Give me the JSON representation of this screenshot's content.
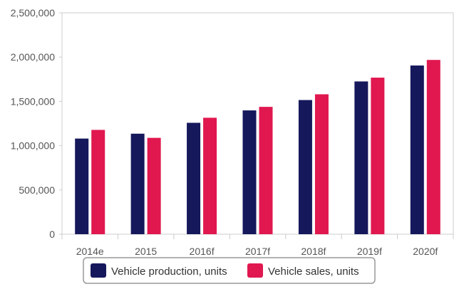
{
  "chart_data": {
    "type": "bar",
    "title": "",
    "xlabel": "",
    "ylabel": "",
    "categories": [
      "2014e",
      "2015",
      "2016f",
      "2017f",
      "2018f",
      "2019f",
      "2020f"
    ],
    "series": [
      {
        "name": "Vehicle production, units",
        "color": "#16185c",
        "values": [
          1080000,
          1135000,
          1258000,
          1398000,
          1515000,
          1725000,
          1905000
        ]
      },
      {
        "name": "Vehicle sales, units",
        "color": "#e0184f",
        "values": [
          1178000,
          1088000,
          1315000,
          1438000,
          1580000,
          1768000,
          1968000
        ]
      }
    ],
    "ylim": [
      0,
      2500000
    ],
    "y_ticks": [
      0,
      500000,
      1000000,
      1500000,
      2000000,
      2500000
    ],
    "y_tick_labels": [
      "0",
      "500,000",
      "1,000,000",
      "1,500,000",
      "2,000,000",
      "2,500,000"
    ],
    "grid": false,
    "legend_position": "bottom"
  },
  "colors": {
    "axis": "#cccccc",
    "plot_border": "#cccccc",
    "tick_text": "#555555",
    "legend_border": "#999999"
  }
}
